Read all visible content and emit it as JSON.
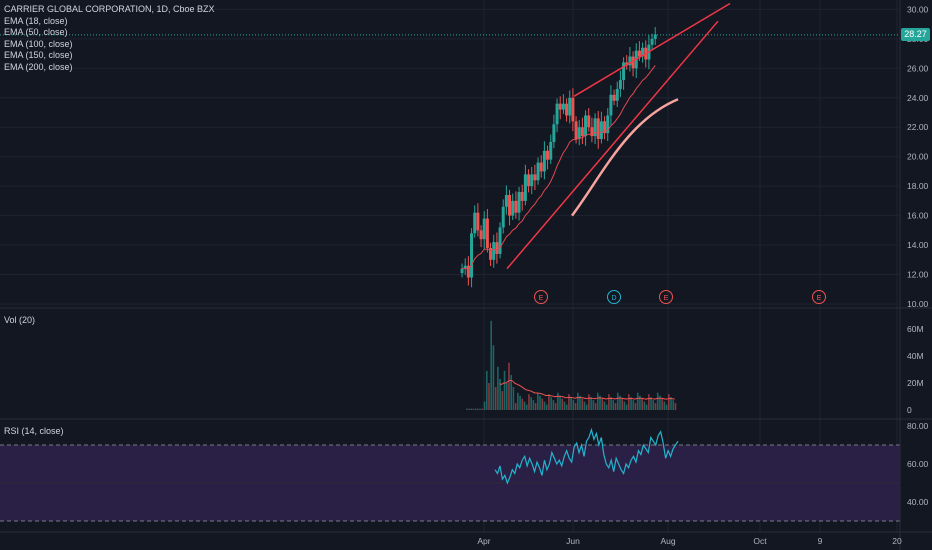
{
  "header": {
    "symbol_line": "CARRIER GLOBAL CORPORATION, 1D, Cboe BZX",
    "indicators": [
      "EMA (18, close)",
      "EMA (50, close)",
      "EMA (100, close)",
      "EMA (150, close)",
      "EMA (200, close)"
    ]
  },
  "last_price": "28.27",
  "colors": {
    "background": "#131722",
    "up": "#26a69a",
    "down": "#ef5350",
    "trendline": "#f23645",
    "ema_fast": "#e0484f",
    "ema_slow": "#f7a39e",
    "rsi_line": "#22b5cf",
    "rsi_band": "#2a1f45",
    "price_tag": "#26a69a"
  },
  "volume_label": "Vol (20)",
  "rsi_label": "RSI (14, close)",
  "events": [
    "E",
    "D",
    "E",
    "E"
  ],
  "chart_data": [
    {
      "type": "candlestick",
      "title": "CARRIER GLOBAL CORPORATION, 1D, Cboe BZX",
      "y_ticks": [
        "10.00",
        "12.00",
        "14.00",
        "16.00",
        "18.00",
        "20.00",
        "22.00",
        "24.00",
        "26.00",
        "28.00",
        "30.00"
      ],
      "ylim": [
        10,
        30.5
      ],
      "x_ticks": [
        "Apr",
        "Jun",
        "Aug",
        "Oct",
        "9",
        "20"
      ],
      "last": 28.27,
      "trendlines": [
        {
          "from": [
            "Apr 22",
            12.4
          ],
          "to": [
            "Aug 25",
            29.2
          ]
        },
        {
          "from": [
            "May 28",
            24.1
          ],
          "to": [
            "Aug 20",
            30.4
          ]
        }
      ],
      "ema_18_end": 26.6,
      "ema_slow_segment": {
        "from": [
          "Jun 1",
          16.0
        ],
        "to": [
          "Aug 2",
          23.9
        ]
      }
    },
    {
      "type": "bar",
      "title": "Vol (20)",
      "y_ticks": [
        "0",
        "20M",
        "40M",
        "60M"
      ],
      "peak_volume_millions": 66
    },
    {
      "type": "line",
      "title": "RSI (14, close)",
      "y_ticks": [
        "40.00",
        "60.00",
        "80.00"
      ],
      "bands": [
        30,
        70
      ],
      "values": [
        57,
        55,
        59,
        52,
        54,
        50,
        53,
        57,
        55,
        60,
        58,
        62,
        64,
        59,
        63,
        60,
        56,
        61,
        58,
        54,
        62,
        57,
        60,
        66,
        63,
        60,
        62,
        59,
        64,
        67,
        63,
        61,
        69,
        71,
        66,
        70,
        64,
        72,
        74,
        78,
        73,
        76,
        70,
        74,
        65,
        60,
        58,
        62,
        56,
        63,
        60,
        57,
        55,
        60,
        58,
        62,
        64,
        61,
        67,
        65,
        70,
        68,
        66,
        74,
        72,
        70,
        75,
        77,
        71,
        63,
        67,
        64,
        68,
        70,
        72
      ],
      "ylim": [
        25,
        82
      ]
    }
  ]
}
